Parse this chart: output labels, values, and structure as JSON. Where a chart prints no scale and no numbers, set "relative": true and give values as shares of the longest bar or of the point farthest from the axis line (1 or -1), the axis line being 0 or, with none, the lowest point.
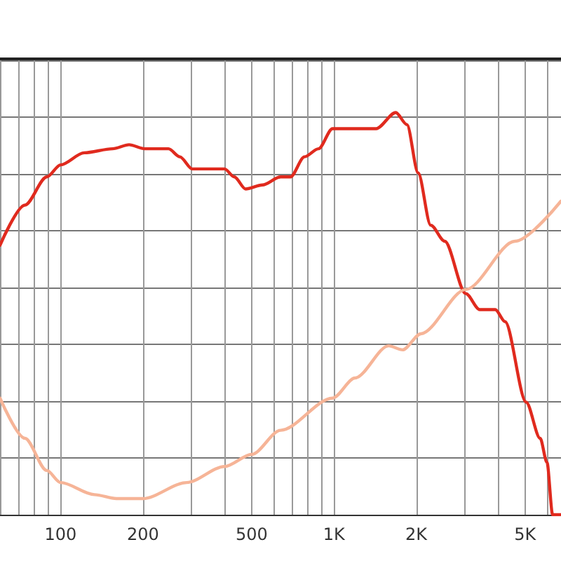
{
  "chart_data": {
    "type": "line",
    "relative": true,
    "log": "x",
    "grid": true,
    "marker": "none",
    "line_style": "solid",
    "xlim": [
      60,
      6770
    ],
    "xticks": [
      {
        "value": 60,
        "label": null
      },
      {
        "value": 70,
        "label": null
      },
      {
        "value": 80,
        "label": null
      },
      {
        "value": 90,
        "label": null
      },
      100,
      200,
      {
        "value": 300,
        "label": null
      },
      {
        "value": 400,
        "label": null
      },
      500,
      {
        "value": 600,
        "label": null
      },
      {
        "value": 700,
        "label": null
      },
      {
        "value": 800,
        "label": null
      },
      {
        "value": 900,
        "label": null
      },
      {
        "value": 1000,
        "label": "1K"
      },
      {
        "value": 2000,
        "label": "2K"
      },
      {
        "value": 3000,
        "label": null
      },
      {
        "value": 4000,
        "label": null
      },
      {
        "value": 5000,
        "label": "5K"
      },
      {
        "value": 6000,
        "label": null
      }
    ],
    "series": [
      {
        "color": "#e02a1e",
        "x": [
          60,
          74,
          89,
          100,
          122,
          155,
          178,
          203,
          248,
          273,
          303,
          398,
          432,
          475,
          547,
          638,
          693,
          780,
          878,
          988,
          1153,
          1426,
          1683,
          1849,
          2032,
          2259,
          2543,
          3034,
          3415,
          3890,
          4227,
          5047,
          5680,
          6016,
          6310,
          6770
        ],
        "values": [
          0.67,
          0.77,
          0.84,
          0.87,
          0.9,
          0.91,
          0.92,
          0.91,
          0.91,
          0.89,
          0.86,
          0.86,
          0.84,
          0.81,
          0.82,
          0.84,
          0.84,
          0.89,
          0.91,
          0.96,
          0.96,
          0.96,
          1,
          0.97,
          0.85,
          0.72,
          0.68,
          0.55,
          0.51,
          0.51,
          0.48,
          0.28,
          0.19,
          0.13,
          0,
          0
        ]
      },
      {
        "color": "#f6b497",
        "x": [
          60,
          74,
          89,
          100,
          133,
          160,
          200,
          289,
          398,
          500,
          638,
          988,
          1194,
          1585,
          1782,
          2080,
          3034,
          4592,
          6770
        ],
        "values": [
          0.29,
          0.19,
          0.11,
          0.08,
          0.05,
          0.04,
          0.04,
          0.08,
          0.12,
          0.15,
          0.21,
          0.29,
          0.34,
          0.42,
          0.41,
          0.45,
          0.56,
          0.68,
          0.78
        ]
      }
    ]
  }
}
